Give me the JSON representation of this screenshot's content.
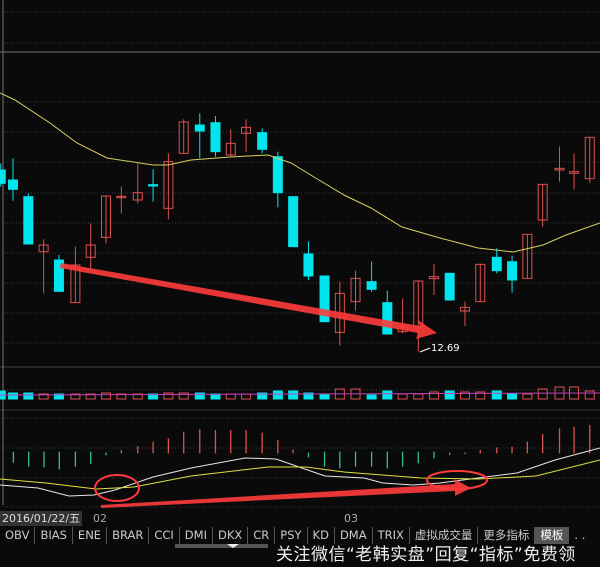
{
  "chart": {
    "low_price_label": "12.69",
    "colors": {
      "up": "#e05050",
      "down": "#00e5ee",
      "ma": "#d8d060",
      "dif": "#e8e8e8",
      "dea": "#e0e040",
      "annotation": "#ff3b3b"
    }
  },
  "axis": {
    "date": "2016/01/22/五",
    "months": [
      "02",
      "03"
    ]
  },
  "tabs": [
    "OBV",
    "BIAS",
    "ENE",
    "BRAR",
    "CCI",
    "DMI",
    "DKX",
    "CR",
    "PSY",
    "KD",
    "DMA",
    "TRIX",
    "虚拟成交量",
    "更多指标",
    "模板",
    ". ."
  ],
  "watermark": "关注微信“老韩实盘”回复“指标”免费领"
}
